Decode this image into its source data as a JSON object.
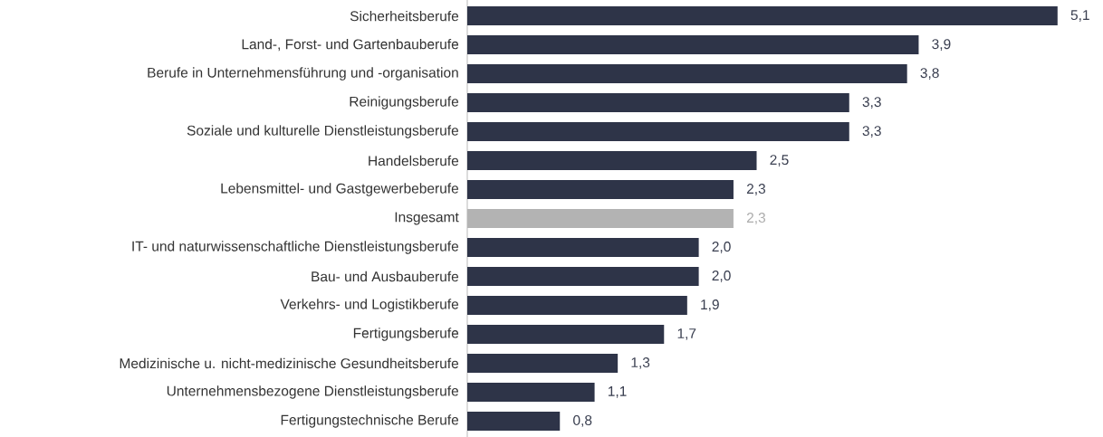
{
  "chart_data": {
    "type": "bar",
    "orientation": "horizontal",
    "categories": [
      "Sicherheitsberufe",
      "Land-, Forst- und Gartenbauberufe",
      "Berufe in Unternehmensführung und -organisation",
      "Reinigungsberufe",
      "Soziale und kulturelle Dienstleistungsberufe",
      "Handelsberufe",
      "Lebensmittel- und Gastgewerbeberufe",
      "Insgesamt",
      "IT- und naturwissenschaftliche Dienstleistungsberufe",
      "Bau- und Ausbauberufe",
      "Verkehrs- und Logistikberufe",
      "Fertigungsberufe",
      "Medizinische u. nicht-medizinische Gesundheitsberufe",
      "Unternehmensbezogene Dienstleistungsberufe",
      "Fertigungstechnische Berufe"
    ],
    "values": [
      5.1,
      3.9,
      3.8,
      3.3,
      3.3,
      2.5,
      2.3,
      2.3,
      2.0,
      2.0,
      1.9,
      1.7,
      1.3,
      1.1,
      0.8
    ],
    "value_labels": [
      "5,1",
      "3,9",
      "3,8",
      "3,3",
      "3,3",
      "2,5",
      "2,3",
      "2,3",
      "2,0",
      "2,0",
      "1,9",
      "1,7",
      "1,3",
      "1,1",
      "0,8"
    ],
    "colors": [
      "#2e3448",
      "#2e3448",
      "#2e3448",
      "#2e3448",
      "#2e3448",
      "#2e3448",
      "#2e3448",
      "#b3b3b3",
      "#2e3448",
      "#2e3448",
      "#2e3448",
      "#2e3448",
      "#2e3448",
      "#2e3448",
      "#2e3448"
    ]
  }
}
